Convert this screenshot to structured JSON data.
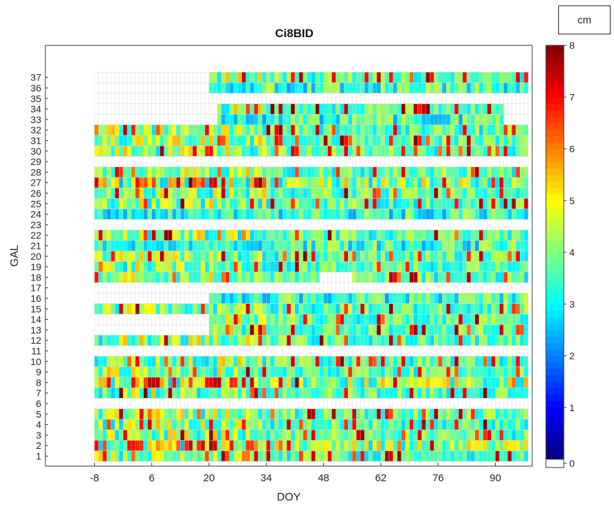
{
  "chart_data": {
    "type": "heatmap",
    "title": "Ci8BID",
    "xlabel": "DOY",
    "ylabel": "GAL",
    "colorbar_unit": "cm",
    "x_ticks": [
      -8,
      6,
      20,
      34,
      48,
      62,
      76,
      90
    ],
    "x_range": [
      -20,
      99
    ],
    "x_days": [
      -8,
      98
    ],
    "y_ticks": [
      1,
      2,
      3,
      4,
      5,
      6,
      7,
      8,
      9,
      10,
      11,
      12,
      13,
      14,
      15,
      16,
      17,
      18,
      19,
      20,
      21,
      22,
      23,
      24,
      25,
      26,
      27,
      28,
      29,
      30,
      31,
      32,
      33,
      34,
      35,
      36,
      37
    ],
    "colorbar_range": [
      0,
      8
    ],
    "colorbar_ticks": [
      0,
      1,
      2,
      3,
      4,
      5,
      6,
      7,
      8
    ],
    "colormap": "jet",
    "grid": true,
    "rows": [
      {
        "gal": 1,
        "coverage": [
          [
            -8,
            98
          ]
        ],
        "level": "mixed"
      },
      {
        "gal": 2,
        "coverage": [
          [
            -8,
            98
          ]
        ],
        "level": "high-early"
      },
      {
        "gal": 3,
        "coverage": [
          [
            -8,
            98
          ]
        ],
        "level": "mixed"
      },
      {
        "gal": 4,
        "coverage": [
          [
            -8,
            98
          ]
        ],
        "level": "mixed"
      },
      {
        "gal": 5,
        "coverage": [
          [
            -8,
            98
          ]
        ],
        "level": "mixed"
      },
      {
        "gal": 7,
        "coverage": [
          [
            -8,
            98
          ]
        ],
        "level": "mixed"
      },
      {
        "gal": 8,
        "coverage": [
          [
            -8,
            98
          ]
        ],
        "level": "high-early"
      },
      {
        "gal": 9,
        "coverage": [
          [
            -8,
            98
          ]
        ],
        "level": "mixed"
      },
      {
        "gal": 10,
        "coverage": [
          [
            -8,
            98
          ]
        ],
        "level": "mixed"
      },
      {
        "gal": 12,
        "coverage": [
          [
            -8,
            98
          ]
        ],
        "level": "mixed"
      },
      {
        "gal": 13,
        "coverage": [
          [
            20,
            98
          ]
        ],
        "level": "mixed"
      },
      {
        "gal": 14,
        "coverage": [
          [
            20,
            98
          ]
        ],
        "level": "mixed"
      },
      {
        "gal": 15,
        "coverage": [
          [
            -8,
            98
          ]
        ],
        "level": "mixed"
      },
      {
        "gal": 16,
        "coverage": [
          [
            20,
            98
          ]
        ],
        "level": "low"
      },
      {
        "gal": 18,
        "coverage": [
          [
            -8,
            47
          ],
          [
            55,
            98
          ]
        ],
        "level": "mixed"
      },
      {
        "gal": 19,
        "coverage": [
          [
            -8,
            98
          ]
        ],
        "level": "mixed"
      },
      {
        "gal": 20,
        "coverage": [
          [
            -8,
            98
          ]
        ],
        "level": "mixed"
      },
      {
        "gal": 21,
        "coverage": [
          [
            -8,
            98
          ]
        ],
        "level": "low"
      },
      {
        "gal": 22,
        "coverage": [
          [
            -8,
            98
          ]
        ],
        "level": "mixed"
      },
      {
        "gal": 24,
        "coverage": [
          [
            -8,
            98
          ]
        ],
        "level": "low"
      },
      {
        "gal": 25,
        "coverage": [
          [
            -8,
            98
          ]
        ],
        "level": "mixed"
      },
      {
        "gal": 26,
        "coverage": [
          [
            -8,
            98
          ]
        ],
        "level": "mixed"
      },
      {
        "gal": 27,
        "coverage": [
          [
            -8,
            98
          ]
        ],
        "level": "high-early"
      },
      {
        "gal": 28,
        "coverage": [
          [
            -8,
            98
          ]
        ],
        "level": "mixed"
      },
      {
        "gal": 30,
        "coverage": [
          [
            -8,
            98
          ]
        ],
        "level": "mixed"
      },
      {
        "gal": 31,
        "coverage": [
          [
            -8,
            98
          ]
        ],
        "level": "mixed"
      },
      {
        "gal": 32,
        "coverage": [
          [
            -8,
            98
          ]
        ],
        "level": "mixed"
      },
      {
        "gal": 33,
        "coverage": [
          [
            22,
            92
          ]
        ],
        "level": "low"
      },
      {
        "gal": 34,
        "coverage": [
          [
            22,
            92
          ]
        ],
        "level": "mixed"
      },
      {
        "gal": 36,
        "coverage": [
          [
            20,
            98
          ]
        ],
        "level": "low"
      },
      {
        "gal": 37,
        "coverage": [
          [
            20,
            98
          ]
        ],
        "level": "mixed"
      }
    ],
    "empty_rows": [
      6,
      11,
      17,
      23,
      29,
      35
    ]
  }
}
